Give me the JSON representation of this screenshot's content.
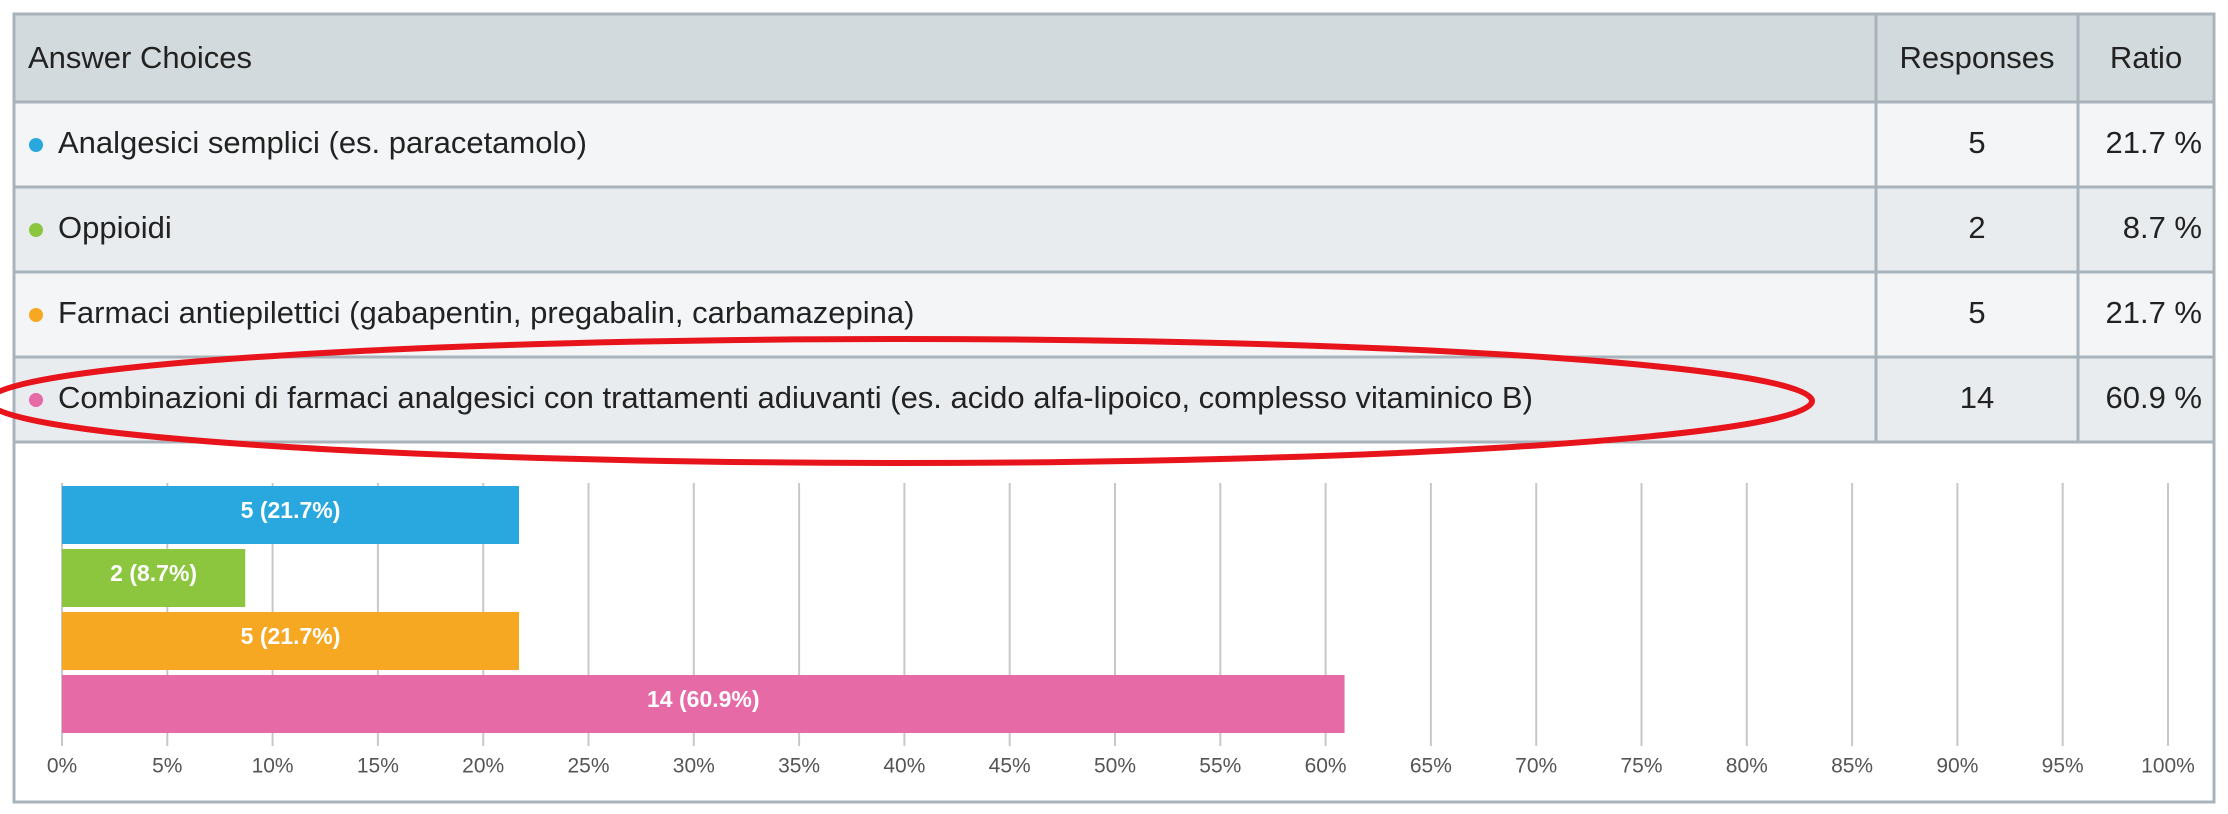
{
  "table": {
    "header": [
      "Answer Choices",
      "Responses",
      "Ratio"
    ],
    "rows": [
      {
        "choice": "Analgesici semplici (es. paracetamolo)",
        "responses": 5,
        "ratio": "21.7 %"
      },
      {
        "choice": "Oppioidi",
        "responses": 2,
        "ratio": "8.7 %"
      },
      {
        "choice": "Farmaci antiepilettici (gabapentin, pregabalin, carbamazepina)",
        "responses": 5,
        "ratio": "21.7 %"
      },
      {
        "choice": "Combinazioni di farmaci analgesici con trattamenti adiuvanti (es. acido alfa-lipoico, complesso vitaminico B)",
        "responses": 14,
        "ratio": "60.9 %"
      }
    ]
  },
  "chart_data": {
    "type": "bar",
    "orientation": "horizontal",
    "categories": [
      null,
      null,
      null,
      null
    ],
    "values": [
      21.7,
      8.7,
      21.7,
      60.9
    ],
    "value_labels": [
      "5 (21.7%)",
      "2 (8.7%)",
      "5 (21.7%)",
      "14 (60.9%)"
    ],
    "colors": [
      "#29a8e0",
      "#8cc63f",
      "#f7a823",
      "#e66aa6"
    ],
    "xlim": [
      0,
      100
    ],
    "xticks": [
      {
        "value": 0,
        "label": "0%"
      },
      {
        "value": 5,
        "label": "5%"
      },
      {
        "value": 10,
        "label": "10%"
      },
      {
        "value": 15,
        "label": "15%"
      },
      {
        "value": 20,
        "label": "20%"
      },
      {
        "value": 25,
        "label": "25%"
      },
      {
        "value": 30,
        "label": "30%"
      },
      {
        "value": 35,
        "label": "35%"
      },
      {
        "value": 40,
        "label": "40%"
      },
      {
        "value": 45,
        "label": "45%"
      },
      {
        "value": 50,
        "label": "50%"
      },
      {
        "value": 55,
        "label": "55%"
      },
      {
        "value": 60,
        "label": "60%"
      },
      {
        "value": 65,
        "label": "65%"
      },
      {
        "value": 70,
        "label": "70%"
      },
      {
        "value": 75,
        "label": "75%"
      },
      {
        "value": 80,
        "label": "80%"
      },
      {
        "value": 85,
        "label": "85%"
      },
      {
        "value": 90,
        "label": "90%"
      },
      {
        "value": 95,
        "label": "95%"
      },
      {
        "value": 100,
        "label": "100%"
      }
    ],
    "grid": true
  }
}
